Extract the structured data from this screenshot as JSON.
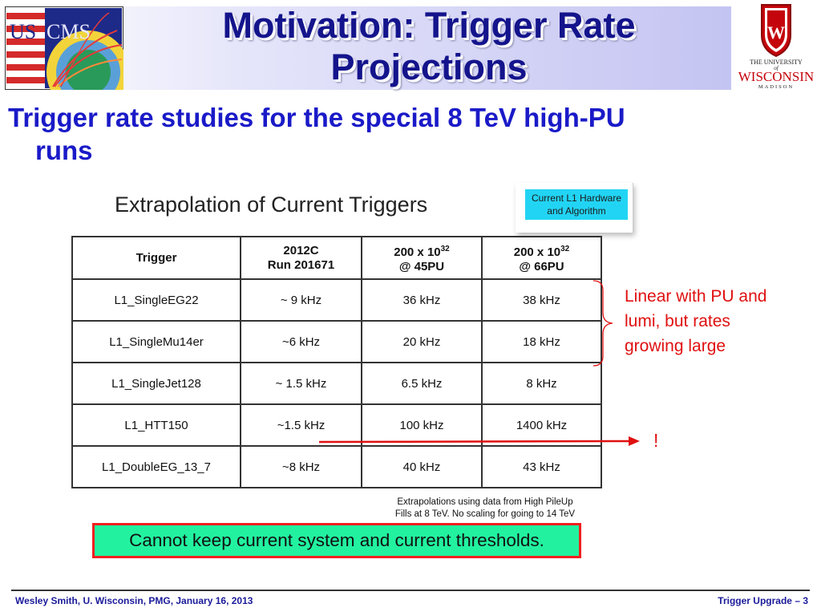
{
  "slide": {
    "title_line1": "Motivation: Trigger Rate",
    "title_line2": "Projections",
    "subtitle_line1": "Trigger rate studies for the special 8 TeV high-PU",
    "subtitle_line2": "runs"
  },
  "logos": {
    "left_text_us": "US",
    "left_text_cms": "CMS",
    "right_crest_letter": "W",
    "right_line1": "THE UNIVERSITY",
    "right_line2": "of",
    "right_line3": "WISCONSIN",
    "right_line4": "MADISON"
  },
  "figure": {
    "title": "Extrapolation of Current Triggers",
    "hardware_note": "Current L1 Hardware and Algorithm",
    "columns": [
      {
        "line1": "Trigger",
        "line2": ""
      },
      {
        "line1": "2012C",
        "line2": "Run 201671"
      },
      {
        "line1": "200 x 10",
        "sup": "32",
        "line2": "@ 45PU"
      },
      {
        "line1": "200 x 10",
        "sup": "32",
        "line2": "@ 66PU"
      }
    ],
    "rows": [
      [
        "L1_SingleEG22",
        "~ 9 kHz",
        "36 kHz",
        "38 kHz"
      ],
      [
        "L1_SingleMu14er",
        "~6 kHz",
        "20 kHz",
        "18 kHz"
      ],
      [
        "L1_SingleJet128",
        "~ 1.5 kHz",
        "6.5 kHz",
        "8 kHz"
      ],
      [
        "L1_HTT150",
        "~1.5 kHz",
        "100 kHz",
        "1400 kHz"
      ],
      [
        "L1_DoubleEG_13_7",
        "~8 kHz",
        "40 kHz",
        "43 kHz"
      ]
    ],
    "note_line1": "Extrapolations using data from High PileUp",
    "note_line2": "Fills at 8 TeV.  No scaling for going to 14 TeV"
  },
  "annotation": {
    "text_line1": "Linear with PU and",
    "text_line2": "lumi, but rates",
    "text_line3": "growing large",
    "exclaim": "!"
  },
  "warning": "Cannot keep current system and current thresholds.",
  "footer": {
    "left": "Wesley Smith, U. Wisconsin, PMG, January 16, 2013",
    "right": "Trigger Upgrade  – 3"
  },
  "colors": {
    "title": "#14148c",
    "subtitle": "#1a1ac8",
    "annotation": "#e01010",
    "warning_bg": "#22f2a0",
    "warning_border": "#f02020",
    "hardware_box": "#22d4f4"
  }
}
